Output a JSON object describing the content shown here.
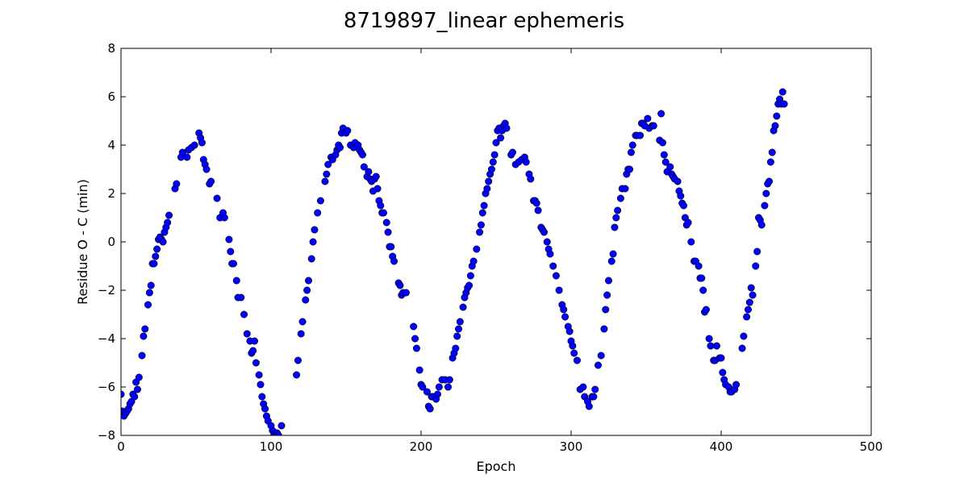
{
  "chart_data": {
    "type": "scatter",
    "title": "8719897_linear ephemeris",
    "xlabel": "Epoch",
    "ylabel": "Residue O - C (min)",
    "xlim": [
      0,
      500
    ],
    "ylim": [
      -8,
      8
    ],
    "xticks": [
      0,
      100,
      200,
      300,
      400,
      500
    ],
    "yticks": [
      -8,
      -6,
      -4,
      -2,
      0,
      2,
      4,
      6,
      8
    ],
    "xtick_labels": [
      "0",
      "100",
      "200",
      "300",
      "400",
      "500"
    ],
    "ytick_labels": [
      "−8",
      "−6",
      "−4",
      "−2",
      "0",
      "2",
      "4",
      "6",
      "8"
    ],
    "grid": false,
    "marker_color": "#0000ff",
    "marker_edge_color": "#000000",
    "series": [
      {
        "points": [
          [
            0,
            -6.3
          ],
          [
            1,
            -7.0
          ],
          [
            2,
            -7.2
          ],
          [
            3,
            -7.1
          ],
          [
            4,
            -7.0
          ],
          [
            5,
            -6.9
          ],
          [
            6,
            -6.7
          ],
          [
            7,
            -6.6
          ],
          [
            8,
            -6.3
          ],
          [
            9,
            -6.4
          ],
          [
            10,
            -5.8
          ],
          [
            11,
            -6.1
          ],
          [
            12,
            -5.6
          ],
          [
            14,
            -4.7
          ],
          [
            15,
            -3.9
          ],
          [
            16,
            -3.6
          ],
          [
            18,
            -2.6
          ],
          [
            19,
            -2.1
          ],
          [
            20,
            -1.8
          ],
          [
            21,
            -0.9
          ],
          [
            22,
            -0.9
          ],
          [
            23,
            -0.6
          ],
          [
            24,
            -0.3
          ],
          [
            25,
            0.1
          ],
          [
            26,
            0.2
          ],
          [
            27,
            0.1
          ],
          [
            28,
            0.0
          ],
          [
            29,
            0.4
          ],
          [
            30,
            0.6
          ],
          [
            31,
            0.8
          ],
          [
            32,
            1.1
          ],
          [
            36,
            2.2
          ],
          [
            37,
            2.4
          ],
          [
            40,
            3.5
          ],
          [
            41,
            3.7
          ],
          [
            44,
            3.5
          ],
          [
            45,
            3.8
          ],
          [
            47,
            3.9
          ],
          [
            49,
            4.0
          ],
          [
            52,
            4.5
          ],
          [
            53,
            4.3
          ],
          [
            54,
            4.1
          ],
          [
            55,
            3.4
          ],
          [
            56,
            3.2
          ],
          [
            57,
            3.0
          ],
          [
            59,
            2.4
          ],
          [
            60,
            2.5
          ],
          [
            64,
            1.8
          ],
          [
            66,
            1.0
          ],
          [
            68,
            1.2
          ],
          [
            69,
            1.0
          ],
          [
            72,
            0.1
          ],
          [
            73,
            -0.4
          ],
          [
            74,
            -0.9
          ],
          [
            75,
            -0.9
          ],
          [
            77,
            -1.6
          ],
          [
            78,
            -2.3
          ],
          [
            80,
            -2.3
          ],
          [
            82,
            -3.0
          ],
          [
            84,
            -3.8
          ],
          [
            86,
            -4.1
          ],
          [
            87,
            -4.6
          ],
          [
            88,
            -4.5
          ],
          [
            89,
            -4.1
          ],
          [
            90,
            -5.0
          ],
          [
            92,
            -5.5
          ],
          [
            93,
            -5.9
          ],
          [
            94,
            -6.4
          ],
          [
            95,
            -6.7
          ],
          [
            96,
            -6.9
          ],
          [
            97,
            -7.2
          ],
          [
            98,
            -7.4
          ],
          [
            100,
            -7.6
          ],
          [
            101,
            -7.8
          ],
          [
            102,
            -8.0
          ],
          [
            104,
            -7.9
          ],
          [
            105,
            -8.0
          ],
          [
            107,
            -7.6
          ],
          [
            117,
            -5.5
          ],
          [
            118,
            -4.9
          ],
          [
            120,
            -3.8
          ],
          [
            121,
            -3.3
          ],
          [
            123,
            -2.4
          ],
          [
            124,
            -2.0
          ],
          [
            125,
            -1.6
          ],
          [
            127,
            -0.7
          ],
          [
            128,
            0.0
          ],
          [
            129,
            0.5
          ],
          [
            131,
            1.2
          ],
          [
            133,
            1.7
          ],
          [
            136,
            2.5
          ],
          [
            137,
            2.8
          ],
          [
            138,
            3.2
          ],
          [
            140,
            3.5
          ],
          [
            141,
            3.4
          ],
          [
            143,
            3.6
          ],
          [
            144,
            3.8
          ],
          [
            145,
            4.0
          ],
          [
            146,
            3.9
          ],
          [
            147,
            4.5
          ],
          [
            148,
            4.7
          ],
          [
            150,
            4.5
          ],
          [
            151,
            4.6
          ],
          [
            153,
            4.0
          ],
          [
            155,
            3.9
          ],
          [
            156,
            4.1
          ],
          [
            158,
            4.0
          ],
          [
            159,
            3.8
          ],
          [
            160,
            3.7
          ],
          [
            161,
            3.6
          ],
          [
            162,
            3.1
          ],
          [
            164,
            2.7
          ],
          [
            165,
            2.9
          ],
          [
            166,
            2.6
          ],
          [
            167,
            2.5
          ],
          [
            168,
            2.1
          ],
          [
            169,
            2.6
          ],
          [
            170,
            2.7
          ],
          [
            171,
            2.2
          ],
          [
            172,
            1.7
          ],
          [
            173,
            1.5
          ],
          [
            174,
            1.2
          ],
          [
            175,
            1.2
          ],
          [
            177,
            0.8
          ],
          [
            178,
            0.4
          ],
          [
            179,
            -0.2
          ],
          [
            180,
            -0.2
          ],
          [
            181,
            -0.6
          ],
          [
            182,
            -0.8
          ],
          [
            185,
            -1.7
          ],
          [
            186,
            -1.8
          ],
          [
            187,
            -2.2
          ],
          [
            188,
            -2.1
          ],
          [
            190,
            -2.1
          ],
          [
            195,
            -3.5
          ],
          [
            196,
            -4.0
          ],
          [
            197,
            -4.4
          ],
          [
            199,
            -5.3
          ],
          [
            200,
            -5.9
          ],
          [
            201,
            -6.0
          ],
          [
            204,
            -6.2
          ],
          [
            205,
            -6.8
          ],
          [
            206,
            -6.9
          ],
          [
            207,
            -6.4
          ],
          [
            208,
            -6.4
          ],
          [
            210,
            -6.5
          ],
          [
            211,
            -6.3
          ],
          [
            212,
            -6.0
          ],
          [
            214,
            -5.7
          ],
          [
            216,
            -5.7
          ],
          [
            218,
            -6.0
          ],
          [
            219,
            -5.7
          ],
          [
            221,
            -4.8
          ],
          [
            222,
            -4.6
          ],
          [
            223,
            -4.4
          ],
          [
            224,
            -3.9
          ],
          [
            225,
            -3.6
          ],
          [
            226,
            -3.3
          ],
          [
            228,
            -2.7
          ],
          [
            229,
            -2.3
          ],
          [
            230,
            -2.1
          ],
          [
            231,
            -1.9
          ],
          [
            232,
            -1.8
          ],
          [
            233,
            -1.4
          ],
          [
            234,
            -1.0
          ],
          [
            235,
            -0.8
          ],
          [
            237,
            -0.3
          ],
          [
            239,
            0.4
          ],
          [
            240,
            0.7
          ],
          [
            241,
            1.2
          ],
          [
            242,
            1.5
          ],
          [
            243,
            2.0
          ],
          [
            244,
            2.2
          ],
          [
            245,
            2.5
          ],
          [
            246,
            2.8
          ],
          [
            247,
            3.0
          ],
          [
            248,
            3.3
          ],
          [
            249,
            3.6
          ],
          [
            250,
            4.1
          ],
          [
            251,
            4.6
          ],
          [
            252,
            4.7
          ],
          [
            253,
            4.3
          ],
          [
            254,
            4.6
          ],
          [
            255,
            4.8
          ],
          [
            256,
            4.9
          ],
          [
            257,
            4.7
          ],
          [
            260,
            3.6
          ],
          [
            261,
            3.7
          ],
          [
            263,
            3.2
          ],
          [
            265,
            3.3
          ],
          [
            267,
            3.4
          ],
          [
            269,
            3.5
          ],
          [
            270,
            3.3
          ],
          [
            272,
            2.8
          ],
          [
            273,
            2.6
          ],
          [
            275,
            1.7
          ],
          [
            276,
            1.7
          ],
          [
            277,
            1.6
          ],
          [
            278,
            1.3
          ],
          [
            280,
            0.6
          ],
          [
            281,
            0.5
          ],
          [
            282,
            0.4
          ],
          [
            284,
            0.0
          ],
          [
            285,
            -0.3
          ],
          [
            286,
            -0.5
          ],
          [
            288,
            -1.0
          ],
          [
            290,
            -1.4
          ],
          [
            292,
            -2.0
          ],
          [
            294,
            -2.6
          ],
          [
            295,
            -2.8
          ],
          [
            296,
            -3.1
          ],
          [
            298,
            -3.5
          ],
          [
            299,
            -3.7
          ],
          [
            300,
            -4.1
          ],
          [
            301,
            -4.3
          ],
          [
            302,
            -4.6
          ],
          [
            304,
            -4.9
          ],
          [
            306,
            -6.1
          ],
          [
            308,
            -6.0
          ],
          [
            309,
            -6.4
          ],
          [
            311,
            -6.6
          ],
          [
            312,
            -6.8
          ],
          [
            314,
            -6.4
          ],
          [
            315,
            -6.4
          ],
          [
            316,
            -6.1
          ],
          [
            318,
            -5.1
          ],
          [
            320,
            -4.7
          ],
          [
            322,
            -3.6
          ],
          [
            323,
            -2.8
          ],
          [
            324,
            -2.2
          ],
          [
            325,
            -1.6
          ],
          [
            327,
            -0.8
          ],
          [
            328,
            -0.5
          ],
          [
            329,
            0.6
          ],
          [
            330,
            1.0
          ],
          [
            331,
            1.3
          ],
          [
            333,
            1.8
          ],
          [
            334,
            2.2
          ],
          [
            336,
            2.2
          ],
          [
            337,
            2.8
          ],
          [
            338,
            3.0
          ],
          [
            339,
            3.0
          ],
          [
            340,
            3.7
          ],
          [
            341,
            4.0
          ],
          [
            343,
            4.4
          ],
          [
            344,
            4.4
          ],
          [
            346,
            4.4
          ],
          [
            347,
            4.9
          ],
          [
            348,
            4.9
          ],
          [
            349,
            4.8
          ],
          [
            351,
            5.1
          ],
          [
            352,
            4.7
          ],
          [
            354,
            4.8
          ],
          [
            355,
            4.8
          ],
          [
            359,
            4.2
          ],
          [
            360,
            5.3
          ],
          [
            361,
            4.1
          ],
          [
            362,
            3.6
          ],
          [
            363,
            3.3
          ],
          [
            364,
            2.9
          ],
          [
            366,
            3.1
          ],
          [
            367,
            2.8
          ],
          [
            368,
            2.7
          ],
          [
            369,
            2.6
          ],
          [
            371,
            2.5
          ],
          [
            372,
            2.1
          ],
          [
            373,
            1.9
          ],
          [
            374,
            1.6
          ],
          [
            375,
            1.5
          ],
          [
            376,
            1.0
          ],
          [
            377,
            0.7
          ],
          [
            378,
            0.8
          ],
          [
            380,
            0.0
          ],
          [
            382,
            -0.8
          ],
          [
            383,
            -0.8
          ],
          [
            385,
            -1.0
          ],
          [
            386,
            -1.5
          ],
          [
            387,
            -1.5
          ],
          [
            388,
            -2.0
          ],
          [
            389,
            -2.9
          ],
          [
            390,
            -2.8
          ],
          [
            392,
            -4.0
          ],
          [
            393,
            -4.3
          ],
          [
            395,
            -4.9
          ],
          [
            396,
            -4.9
          ],
          [
            397,
            -4.3
          ],
          [
            399,
            -4.8
          ],
          [
            400,
            -4.8
          ],
          [
            401,
            -5.4
          ],
          [
            402,
            -5.7
          ],
          [
            403,
            -5.9
          ],
          [
            405,
            -6.0
          ],
          [
            406,
            -6.2
          ],
          [
            407,
            -6.2
          ],
          [
            409,
            -6.1
          ],
          [
            410,
            -5.9
          ],
          [
            414,
            -4.4
          ],
          [
            415,
            -3.9
          ],
          [
            417,
            -3.1
          ],
          [
            418,
            -2.8
          ],
          [
            419,
            -2.5
          ],
          [
            420,
            -1.9
          ],
          [
            421,
            -2.2
          ],
          [
            423,
            -1.0
          ],
          [
            424,
            -0.4
          ],
          [
            425,
            1.0
          ],
          [
            426,
            0.9
          ],
          [
            427,
            0.7
          ],
          [
            429,
            1.5
          ],
          [
            430,
            2.0
          ],
          [
            431,
            2.4
          ],
          [
            432,
            2.5
          ],
          [
            433,
            3.3
          ],
          [
            434,
            3.7
          ],
          [
            435,
            4.6
          ],
          [
            436,
            4.8
          ],
          [
            437,
            5.2
          ],
          [
            438,
            5.7
          ],
          [
            439,
            5.9
          ],
          [
            440,
            5.7
          ],
          [
            441,
            6.2
          ],
          [
            442,
            5.7
          ]
        ]
      }
    ]
  }
}
